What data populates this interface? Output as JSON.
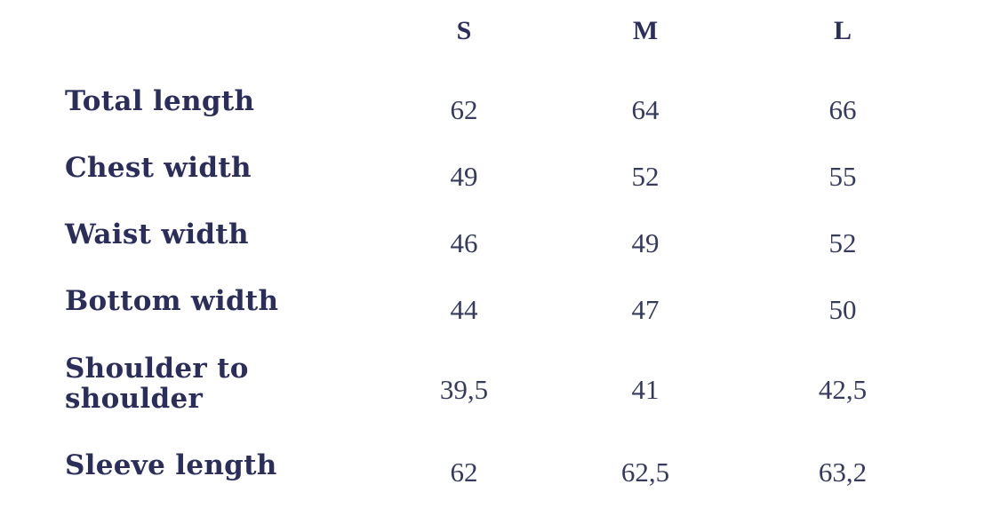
{
  "colors": {
    "label": "#2b2d5a",
    "value": "#363a5c",
    "background": "#ffffff"
  },
  "table": {
    "columns": [
      "S",
      "M",
      "L"
    ],
    "rows": [
      {
        "label": "Total length",
        "values": [
          "62",
          "64",
          "66"
        ]
      },
      {
        "label": "Chest width",
        "values": [
          "49",
          "52",
          "55"
        ]
      },
      {
        "label": "Waist width",
        "values": [
          "46",
          "49",
          "52"
        ]
      },
      {
        "label": "Bottom width",
        "values": [
          "44",
          "47",
          "50"
        ]
      },
      {
        "label": "Shoulder to shoulder",
        "values": [
          "39,5",
          "41",
          "42,5"
        ]
      },
      {
        "label": "Sleeve length",
        "values": [
          "62",
          "62,5",
          "63,2"
        ]
      }
    ]
  }
}
